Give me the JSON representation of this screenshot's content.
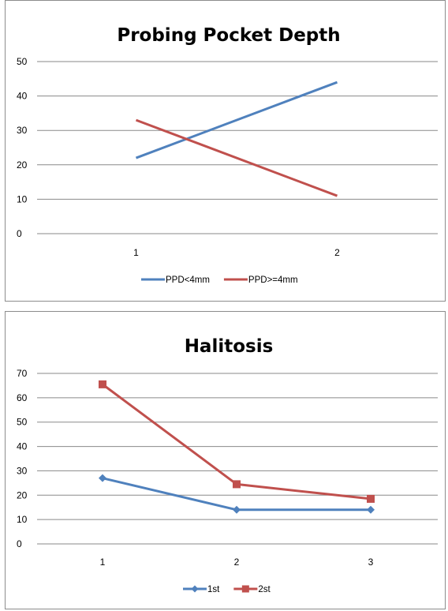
{
  "chart_data": [
    {
      "type": "line",
      "title": "Probing Pocket Depth",
      "xlabel": "",
      "ylabel": "",
      "categories": [
        "1",
        "2"
      ],
      "ylim": [
        0,
        50
      ],
      "yticks": [
        0,
        10,
        20,
        30,
        40,
        50
      ],
      "grid": true,
      "legend_position": "bottom",
      "series": [
        {
          "name": "PPD<4mm",
          "values": [
            22,
            44
          ],
          "color": "#4f81bd",
          "marker": "none"
        },
        {
          "name": "PPD>=4mm",
          "values": [
            33,
            11
          ],
          "color": "#c0504d",
          "marker": "none"
        }
      ]
    },
    {
      "type": "line",
      "title": "Halitosis",
      "xlabel": "",
      "ylabel": "",
      "categories": [
        "1",
        "2",
        "3"
      ],
      "ylim": [
        0,
        70
      ],
      "yticks": [
        0,
        10,
        20,
        30,
        40,
        50,
        60,
        70
      ],
      "grid": true,
      "legend_position": "bottom",
      "series": [
        {
          "name": "1st",
          "values": [
            27,
            14,
            14
          ],
          "color": "#4f81bd",
          "marker": "diamond"
        },
        {
          "name": "2st",
          "values": [
            65.5,
            24.5,
            18.5
          ],
          "color": "#c0504d",
          "marker": "square"
        }
      ]
    }
  ]
}
